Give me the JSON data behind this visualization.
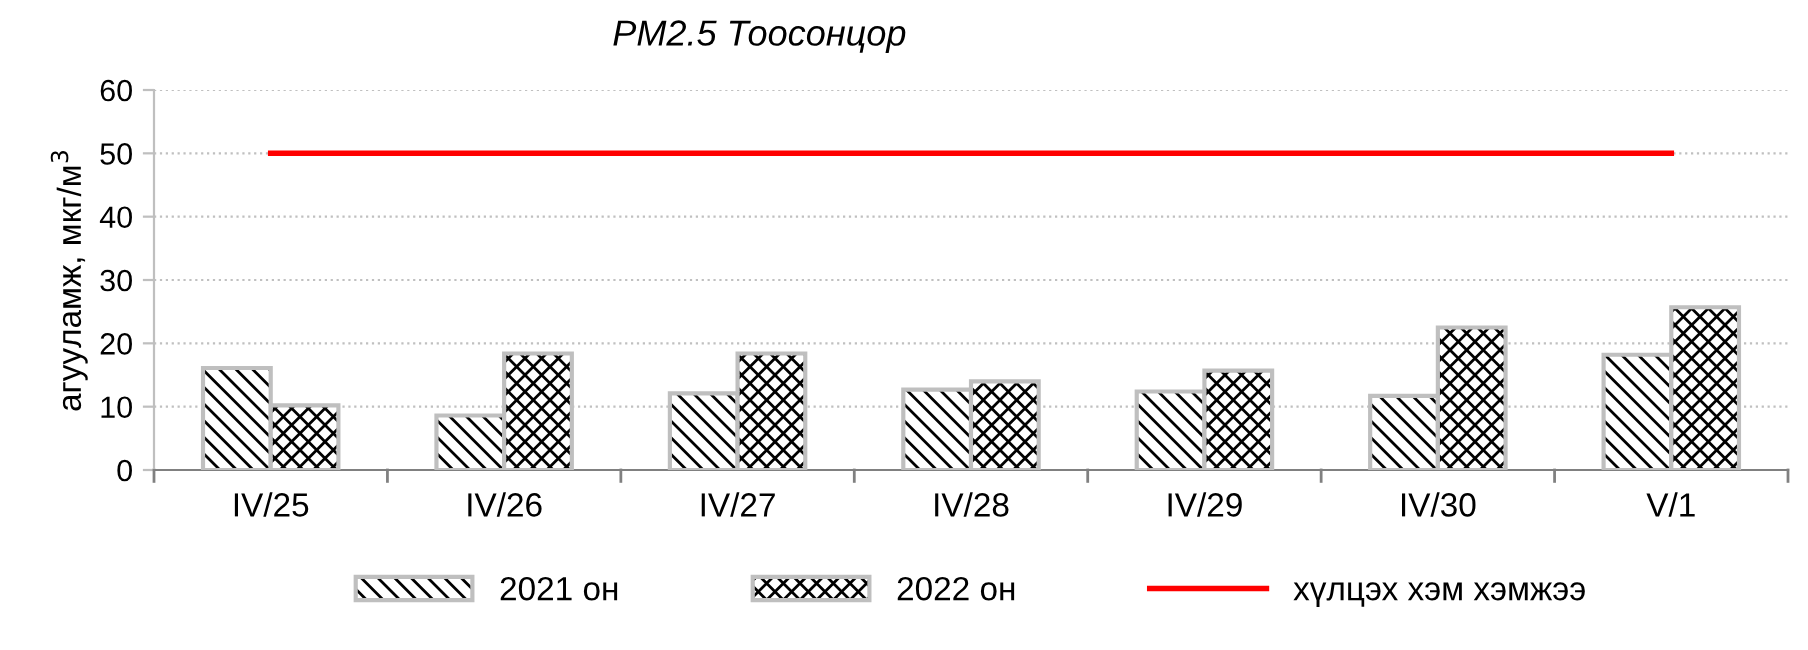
{
  "chart_data": {
    "type": "bar",
    "title": "PM2.5 Тоосонцор",
    "ylabel": "агууламж, мкг/м$^{3}$",
    "categories": [
      "IV/25",
      "IV/26",
      "IV/27",
      "IV/28",
      "IV/29",
      "IV/30",
      "V/1"
    ],
    "series": [
      {
        "name": "2021 он",
        "color": "#bfbfbf",
        "values": [
          16.1,
          8.6,
          12.1,
          12.7,
          12.4,
          11.7,
          18.2
        ]
      },
      {
        "name": "2022 он",
        "color": "#bfbfbf",
        "values": [
          10.2,
          18.4,
          18.4,
          14.0,
          15.7,
          22.5,
          25.7
        ]
      },
      {
        "name": "хүлцэх хэм хэмжээ",
        "type": "line",
        "color": "#ff0000",
        "values": [
          50,
          50,
          50,
          50,
          50,
          50,
          50
        ]
      }
    ],
    "ylim": [
      0,
      60
    ],
    "yticks": [
      0,
      10,
      20,
      30,
      40,
      50,
      60
    ],
    "grid": "y",
    "legend": "bottom"
  }
}
